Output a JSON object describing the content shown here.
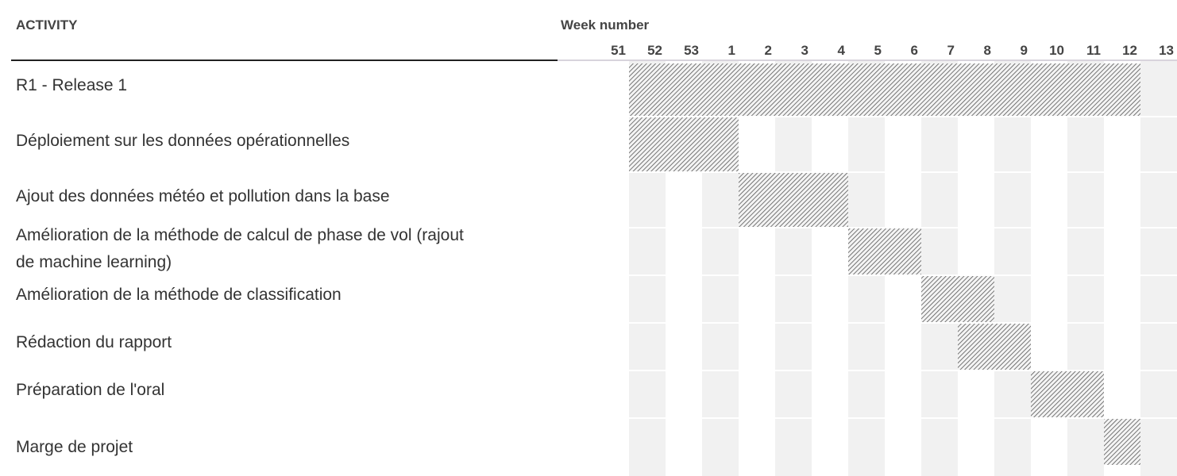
{
  "header": {
    "activity_label": "ACTIVITY",
    "week_label": "Week number"
  },
  "colors": {
    "bar_pattern": "#555555",
    "alt_column": "#f1f1f1",
    "header_rule": "#222222"
  },
  "chart_data": {
    "type": "gantt",
    "weeks": [
      "51",
      "52",
      "53",
      "1",
      "2",
      "3",
      "4",
      "5",
      "6",
      "7",
      "8",
      "9",
      "10",
      "11",
      "12",
      "13"
    ],
    "tasks": [
      {
        "name": "R1 - Release 1",
        "start": "52",
        "end": "12"
      },
      {
        "name": "Déploiement sur les données opérationnelles",
        "start": "52",
        "end": "1"
      },
      {
        "name": "Ajout des données météo et pollution dans la base",
        "start": "2",
        "end": "4"
      },
      {
        "name": "Amélioration de la méthode de calcul de phase de vol (rajout de machine learning)",
        "start": "5",
        "end": "6"
      },
      {
        "name": "Amélioration de la méthode de classification",
        "start": "7",
        "end": "8"
      },
      {
        "name": "Rédaction du rapport",
        "start": "8",
        "end": "9"
      },
      {
        "name": "Préparation de l'oral",
        "start": "10",
        "end": "11"
      },
      {
        "name": "Marge de projet",
        "start": "12",
        "end": "12"
      }
    ],
    "title": "",
    "xlabel": "Week number",
    "ylabel": "ACTIVITY"
  }
}
